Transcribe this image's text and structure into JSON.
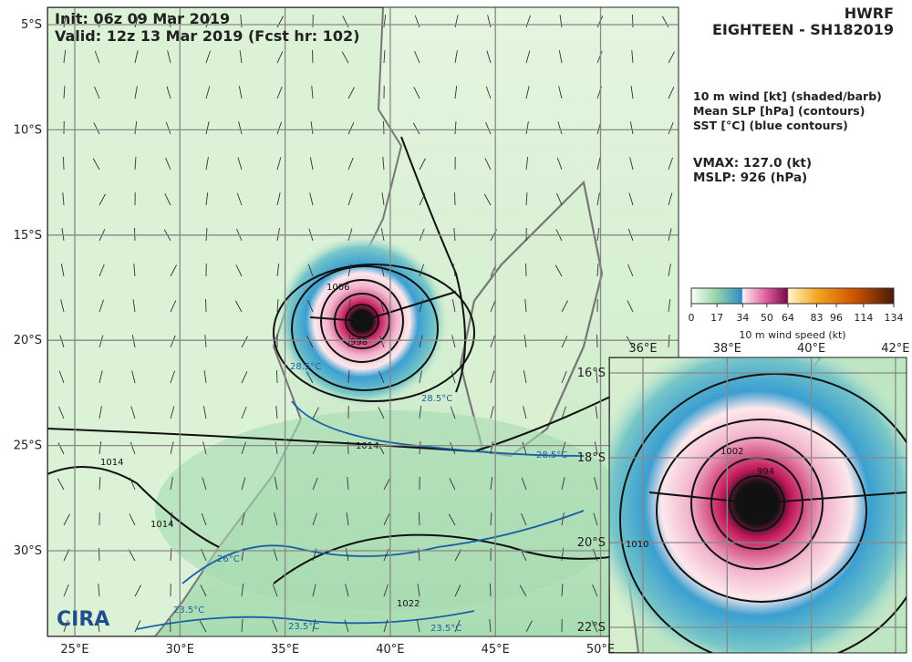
{
  "header": {
    "init": "Init:   06z 09 Mar 2019",
    "valid": "Valid: 12z 13 Mar 2019 (Fcst hr: 102)",
    "model": "HWRF",
    "storm": "EIGHTEEN - SH182019"
  },
  "legend": {
    "lines": [
      "10 m wind [kt] (shaded/barb)",
      "Mean SLP [hPa] (contours)",
      "SST [°C] (blue contours)"
    ],
    "vmax": "VMAX: 127.0 (kt)",
    "mslp": "MSLP:  926 (hPa)"
  },
  "colorbar": {
    "ticks": [
      0,
      17,
      34,
      50,
      64,
      83,
      96,
      114,
      134
    ],
    "label": "10 m wind speed (kt)"
  },
  "map": {
    "lon_labels": [
      "25°E",
      "30°E",
      "35°E",
      "40°E",
      "45°E",
      "50°E"
    ],
    "lat_labels": [
      "5°S",
      "10°S",
      "15°S",
      "20°S",
      "25°S",
      "30°S"
    ],
    "contour_labels": [
      "1006",
      "998",
      "1014",
      "1014",
      "1014",
      "1022",
      "28.5°C",
      "28.5°C",
      "28.5°C",
      "26°C",
      "23.5°C",
      "23.5°C",
      "23.5°C"
    ]
  },
  "inset": {
    "lon_labels": [
      "36°E",
      "38°E",
      "40°E",
      "42°E"
    ],
    "lat_labels": [
      "16°S",
      "18°S",
      "20°S",
      "22°S"
    ],
    "contour_labels": [
      "1002",
      "994",
      "1010"
    ]
  },
  "logo": "CIRA"
}
